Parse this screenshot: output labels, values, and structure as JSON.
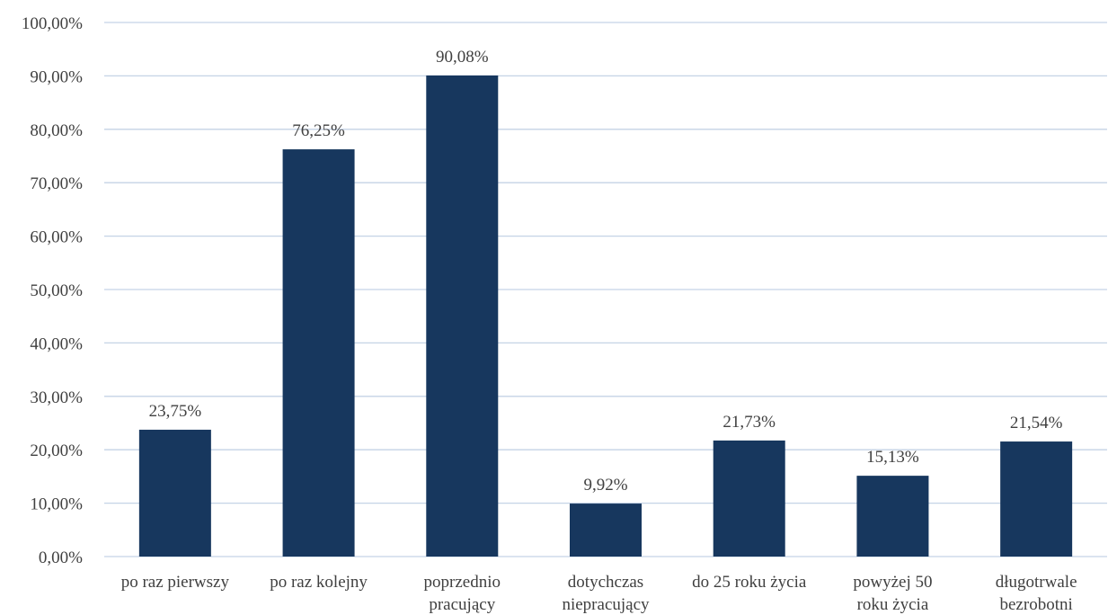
{
  "chart_data": {
    "type": "bar",
    "categories": [
      [
        "po raz pierwszy"
      ],
      [
        "po raz kolejny"
      ],
      [
        "poprzednio",
        "pracujący"
      ],
      [
        "dotychczas",
        "niepracujący"
      ],
      [
        "do 25 roku życia"
      ],
      [
        "powyżej 50",
        "roku życia"
      ],
      [
        "długotrwale",
        "bezrobotni"
      ]
    ],
    "values": [
      23.75,
      76.25,
      90.08,
      9.92,
      21.73,
      15.13,
      21.54
    ],
    "data_labels": [
      "23,75%",
      "76,25%",
      "90,08%",
      "9,92%",
      "21,73%",
      "15,13%",
      "21,54%"
    ],
    "ylim": [
      0,
      100
    ],
    "y_ticks": [
      0,
      10,
      20,
      30,
      40,
      50,
      60,
      70,
      80,
      90,
      100
    ],
    "y_tick_labels": [
      "0,00%",
      "10,00%",
      "20,00%",
      "30,00%",
      "40,00%",
      "50,00%",
      "60,00%",
      "70,00%",
      "80,00%",
      "90,00%",
      "100,00%"
    ],
    "grid": true,
    "bar_color": "#17375e",
    "title": "",
    "xlabel": "",
    "ylabel": ""
  }
}
